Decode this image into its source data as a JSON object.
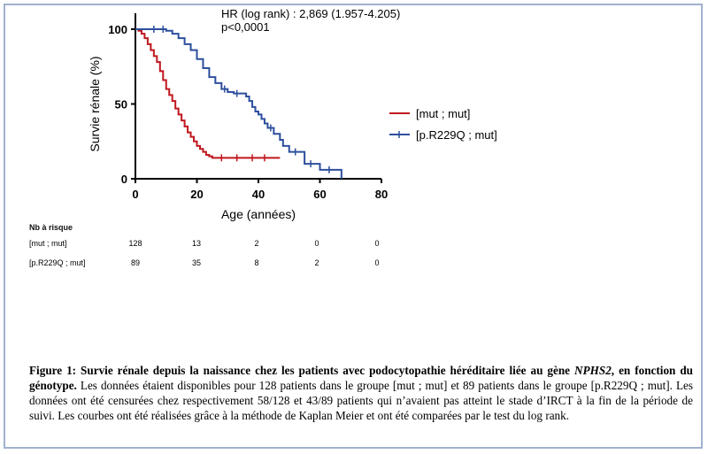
{
  "chart_data": {
    "type": "line",
    "style": "kaplan-meier",
    "annotation_line1": "HR (log rank) : 2,869 (1.957-4.205)",
    "annotation_line2": "p<0,0001",
    "xlabel": "Age (années)",
    "ylabel": "Survie rénale (%)",
    "xlim": [
      0,
      80
    ],
    "ylim": [
      0,
      100
    ],
    "xticks": [
      "0",
      "20",
      "40",
      "60",
      "80"
    ],
    "yticks": [
      "0",
      "50",
      "100"
    ],
    "legend_position": "right",
    "series": [
      {
        "name": "[mut ; mut]",
        "color": "#c0171f",
        "points": [
          [
            0,
            100
          ],
          [
            1,
            99
          ],
          [
            2,
            97
          ],
          [
            3,
            94
          ],
          [
            4,
            90
          ],
          [
            5,
            86
          ],
          [
            6,
            82
          ],
          [
            7,
            78
          ],
          [
            8,
            72
          ],
          [
            9,
            66
          ],
          [
            10,
            60
          ],
          [
            11,
            56
          ],
          [
            12,
            52
          ],
          [
            13,
            47
          ],
          [
            14,
            43
          ],
          [
            15,
            39
          ],
          [
            16,
            35
          ],
          [
            17,
            31
          ],
          [
            18,
            28
          ],
          [
            19,
            25
          ],
          [
            20,
            22
          ],
          [
            21,
            20
          ],
          [
            22,
            18
          ],
          [
            23,
            16
          ],
          [
            24,
            15
          ],
          [
            25,
            14
          ],
          [
            30,
            14
          ],
          [
            40,
            14
          ],
          [
            47,
            14
          ]
        ],
        "censored": [
          28,
          33,
          38,
          42
        ]
      },
      {
        "name": "[p.R229Q ; mut]",
        "color": "#2d4f9e",
        "points": [
          [
            0,
            100
          ],
          [
            5,
            100
          ],
          [
            10,
            99
          ],
          [
            12,
            97
          ],
          [
            14,
            94
          ],
          [
            16,
            90
          ],
          [
            18,
            86
          ],
          [
            20,
            80
          ],
          [
            22,
            74
          ],
          [
            24,
            68
          ],
          [
            26,
            64
          ],
          [
            28,
            60
          ],
          [
            30,
            58
          ],
          [
            32,
            57
          ],
          [
            34,
            57
          ],
          [
            36,
            55
          ],
          [
            37,
            52
          ],
          [
            38,
            48
          ],
          [
            39,
            45
          ],
          [
            40,
            43
          ],
          [
            41,
            40
          ],
          [
            42,
            37
          ],
          [
            43,
            34
          ],
          [
            45,
            30
          ],
          [
            47,
            26
          ],
          [
            48,
            22
          ],
          [
            50,
            18
          ],
          [
            53,
            18
          ],
          [
            55,
            10
          ],
          [
            58,
            10
          ],
          [
            60,
            6
          ],
          [
            65,
            6
          ],
          [
            67,
            0
          ]
        ],
        "censored": [
          6,
          9,
          29,
          33,
          44,
          52,
          57,
          63
        ]
      }
    ]
  },
  "risk_table": {
    "title": "Nb à risque",
    "rows": [
      {
        "label": "[mut ; mut]",
        "values": [
          "128",
          "13",
          "2",
          "0",
          "0"
        ]
      },
      {
        "label": "[p.R229Q ; mut]",
        "values": [
          "89",
          "35",
          "8",
          "2",
          "0"
        ]
      }
    ]
  },
  "caption": {
    "bold_lead": "Figure 1: Survie rénale depuis la naissance chez les patients avec podocytopathie héréditaire liée au gène",
    "gene": "NPHS2",
    "bold_tail": ", en fonction du génotype.",
    "body": " Les données étaient disponibles pour 128 patients dans le groupe [mut ; mut] et 89 patients dans le groupe [p.R229Q ; mut]. Les données ont été censurées chez respectivement 58/128 et 43/89 patients qui n’avaient pas atteint le stade d’IRCT à la fin de la période de suivi. Les courbes ont été réalisées grâce à la méthode de Kaplan Meier et ont été comparées par le test du log rank."
  }
}
